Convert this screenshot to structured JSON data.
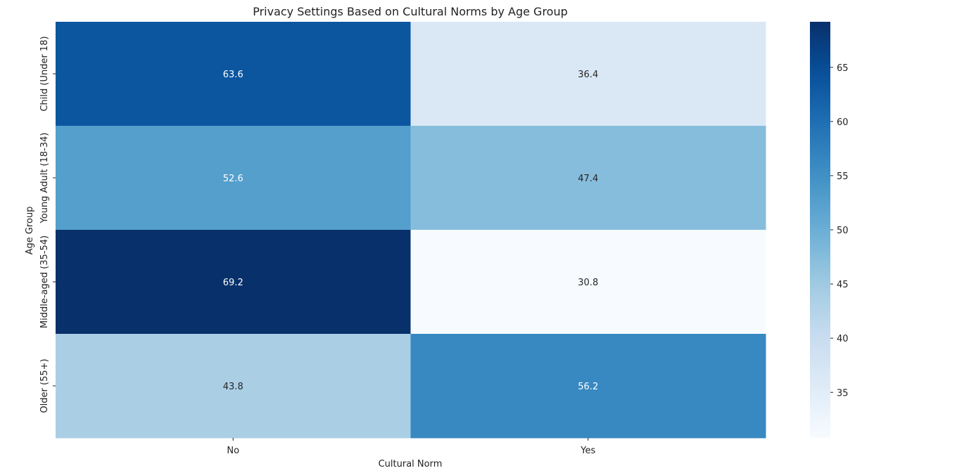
{
  "chart_data": {
    "type": "heatmap",
    "title": "Privacy Settings Based on Cultural Norms by Age Group",
    "xlabel": "Cultural Norm",
    "ylabel": "Age Group",
    "x_categories": [
      "No",
      "Yes"
    ],
    "y_categories": [
      "Child (Under 18)",
      "Young Adult (18-34)",
      "Middle-aged (35-54)",
      "Older (55+)"
    ],
    "values": [
      [
        63.6,
        36.4
      ],
      [
        52.6,
        47.4
      ],
      [
        69.2,
        30.8
      ],
      [
        43.8,
        56.2
      ]
    ],
    "colormap": "Blues",
    "color_range": [
      30.8,
      69.2
    ],
    "colorbar_ticks": [
      35,
      40,
      45,
      50,
      55,
      60,
      65
    ],
    "colorbar_tick_labels": [
      "35",
      "40",
      "45",
      "50",
      "55",
      "60",
      "65"
    ],
    "grid": false,
    "colorbar_position": "right"
  }
}
